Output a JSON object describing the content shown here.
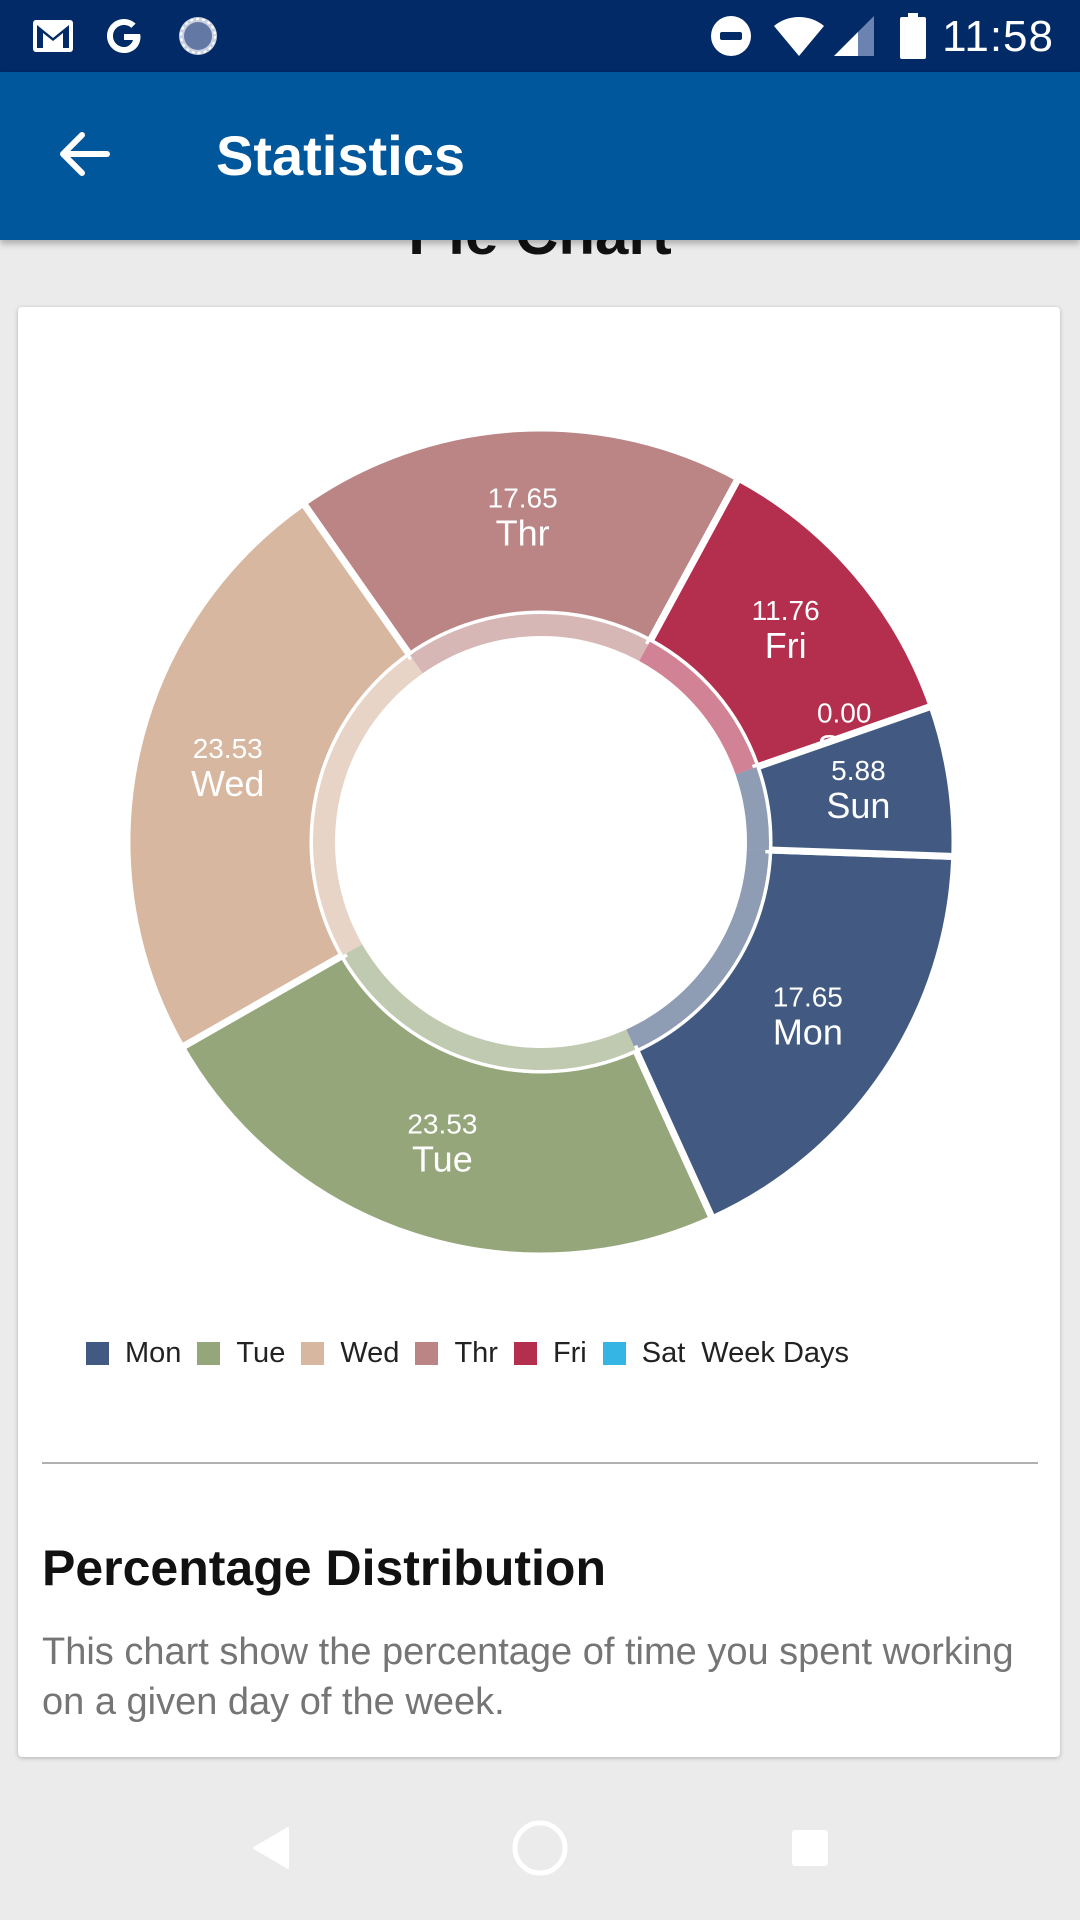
{
  "status_bar": {
    "time": "11:58",
    "left_icons": [
      "gmail-icon",
      "google-icon",
      "sync-icon"
    ],
    "right_icons": [
      "do-not-disturb-icon",
      "wifi-icon",
      "signal-icon",
      "battery-icon"
    ]
  },
  "app_bar": {
    "title": "Statistics",
    "back_icon": "arrow-back-icon"
  },
  "main": {
    "chart_heading": "Pie Chart",
    "section_title": "Percentage Distribution",
    "section_description": "This chart show the percentage of time you spent working on a given day of the week."
  },
  "chart_data": {
    "type": "pie",
    "style": "donut",
    "title": "Pie Chart",
    "legend_title": "Week Days",
    "legend_position": "bottom-left",
    "slices": [
      {
        "label": "Mon",
        "value": 17.65,
        "value_label": "17.65",
        "color": "#425a82"
      },
      {
        "label": "Tue",
        "value": 23.53,
        "value_label": "23.53",
        "color": "#96a67b"
      },
      {
        "label": "Wed",
        "value": 23.53,
        "value_label": "23.53",
        "color": "#d8b7a0"
      },
      {
        "label": "Thr",
        "value": 17.65,
        "value_label": "17.65",
        "color": "#bc8585"
      },
      {
        "label": "Fri",
        "value": 11.76,
        "value_label": "11.76",
        "color": "#b42e4e"
      },
      {
        "label": "Sat",
        "value": 0.0,
        "value_label": "0.00",
        "color": "#35b5e3"
      },
      {
        "label": "Sun",
        "value": 5.88,
        "value_label": "5.88",
        "color": "#425a82"
      }
    ],
    "legend_entries": [
      "Mon",
      "Tue",
      "Wed",
      "Thr",
      "Fri",
      "Sat"
    ]
  },
  "nav_bar": {
    "icons": [
      "back-nav-icon",
      "home-nav-icon",
      "recents-nav-icon"
    ]
  }
}
